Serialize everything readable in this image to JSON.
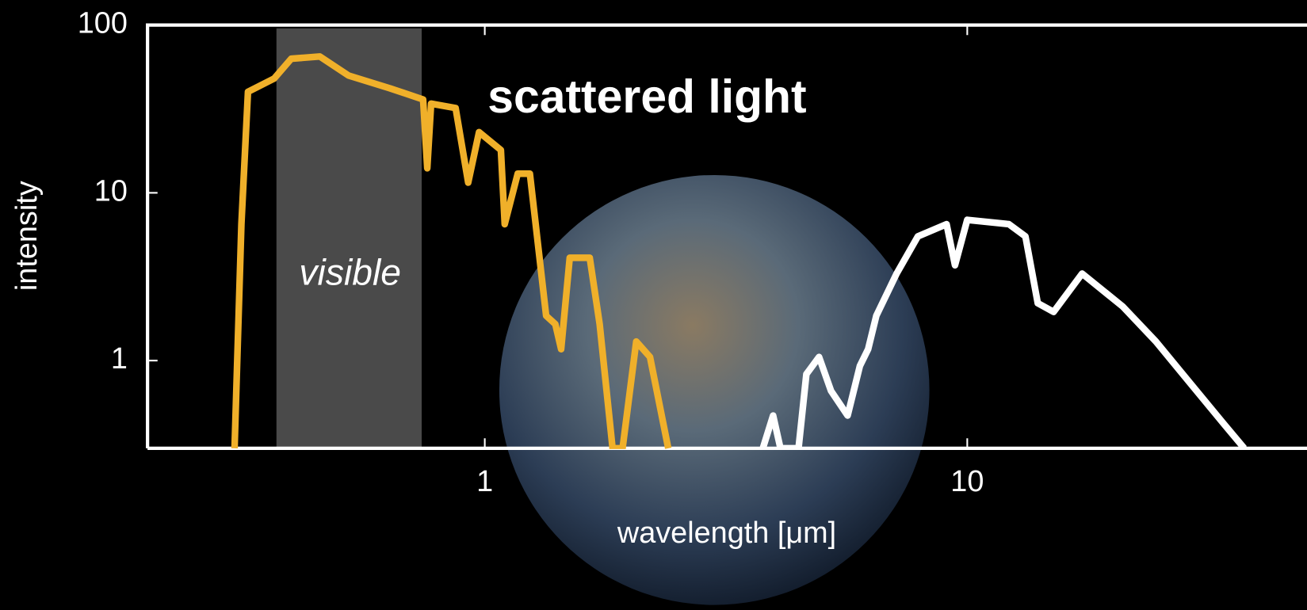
{
  "chart_data": {
    "type": "line",
    "x_label": "wavelength [μm]",
    "y_label": "intensity",
    "log_x": true,
    "log_y": true,
    "xlim": [
      0.2,
      50
    ],
    "ylim": [
      0.3,
      100
    ],
    "xticks": [
      1,
      10
    ],
    "yticks": [
      1,
      10,
      100
    ],
    "band": {
      "label": "visible",
      "range": [
        0.37,
        0.74
      ],
      "color": "#4a4a4a"
    },
    "series": [
      {
        "name": "scattered light",
        "color": "#f0b02a",
        "x": [
          0.303,
          0.313,
          0.323,
          0.366,
          0.397,
          0.455,
          0.522,
          0.636,
          0.745,
          0.76,
          0.774,
          0.87,
          0.924,
          0.973,
          1.08,
          1.1,
          1.17,
          1.24,
          1.34,
          1.4,
          1.44,
          1.5,
          1.65,
          1.73,
          1.84,
          1.93,
          2.06,
          2.2,
          2.4
        ],
        "values": [
          0.3,
          6.5,
          40,
          48,
          63,
          65,
          50,
          42,
          36,
          14,
          34,
          32,
          11.5,
          23,
          18,
          6.5,
          13,
          13,
          1.85,
          1.65,
          1.17,
          4.1,
          4.1,
          1.65,
          0.3,
          0.3,
          1.3,
          1.05,
          0.3
        ]
      },
      {
        "color": "#ffffff",
        "x": [
          3.77,
          3.96,
          4.1,
          4.47,
          4.64,
          4.93,
          5.22,
          5.65,
          5.99,
          6.23,
          6.48,
          7.14,
          7.9,
          9.06,
          9.43,
          10,
          12.2,
          13.2,
          14,
          15.1,
          17.3,
          21,
          24.6,
          28.9,
          34,
          37.5
        ],
        "values": [
          0.3,
          0.47,
          0.3,
          0.3,
          0.83,
          1.05,
          0.66,
          0.47,
          0.93,
          1.17,
          1.85,
          3.3,
          5.5,
          6.5,
          3.7,
          6.9,
          6.5,
          5.5,
          2.2,
          1.95,
          3.3,
          2.1,
          1.3,
          0.74,
          0.42,
          0.3
        ]
      }
    ]
  }
}
